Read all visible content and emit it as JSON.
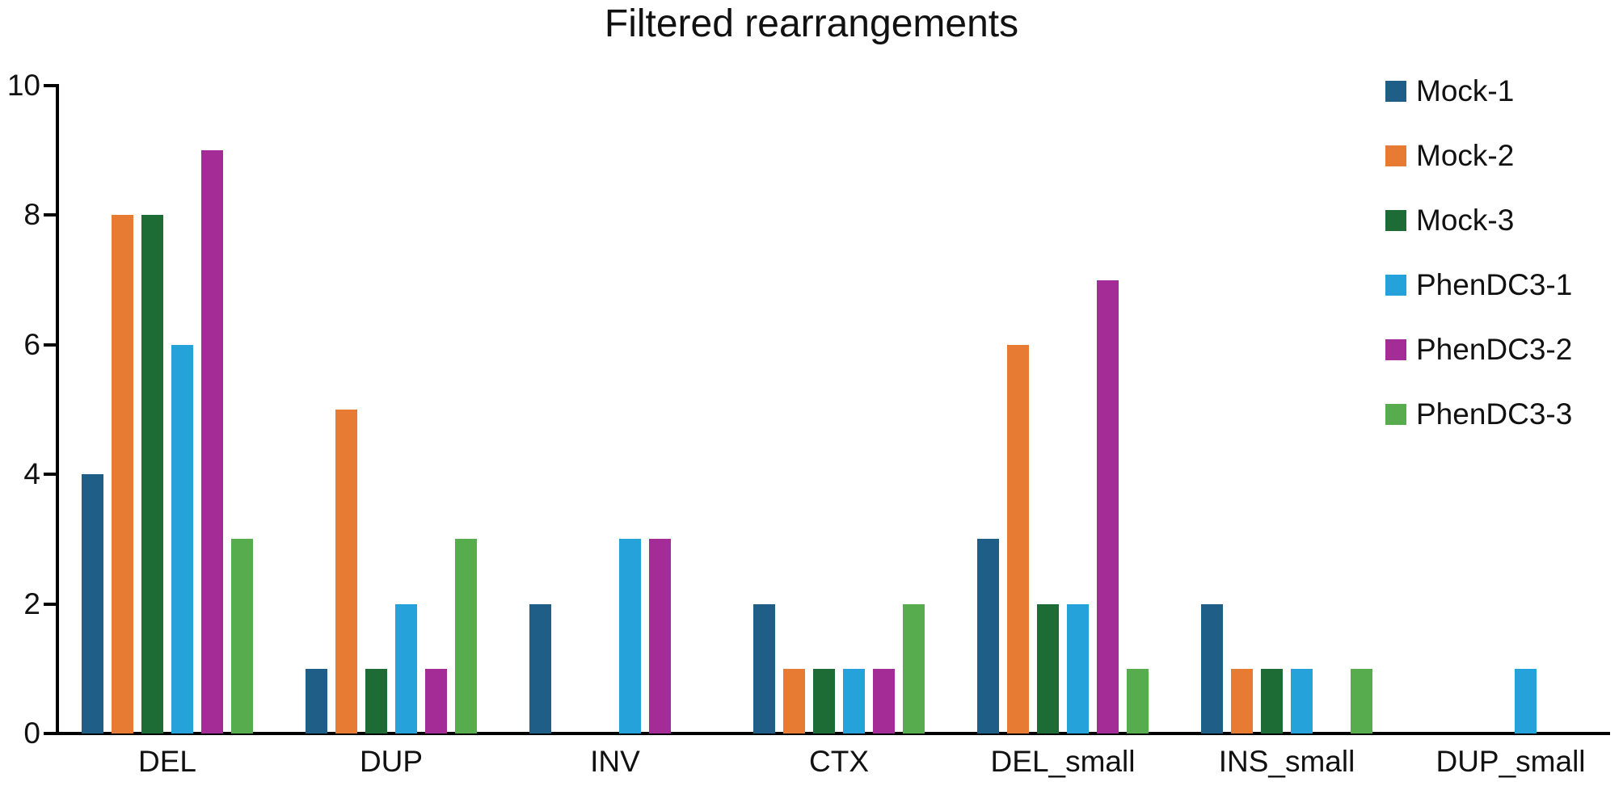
{
  "title": "Filtered rearrangements",
  "chart_data": {
    "type": "bar",
    "title": "Filtered rearrangements",
    "categories": [
      "DEL",
      "DUP",
      "INV",
      "CTX",
      "DEL_small",
      "INS_small",
      "DUP_small"
    ],
    "series": [
      {
        "name": "Mock-1",
        "color": "#1F5E87",
        "values": [
          4,
          1,
          2,
          2,
          3,
          2,
          0
        ]
      },
      {
        "name": "Mock-2",
        "color": "#E87B33",
        "values": [
          8,
          5,
          0,
          1,
          6,
          1,
          0
        ]
      },
      {
        "name": "Mock-3",
        "color": "#1D6B35",
        "values": [
          8,
          1,
          0,
          1,
          2,
          1,
          0
        ]
      },
      {
        "name": "PhenDC3-1",
        "color": "#26A2DB",
        "values": [
          6,
          2,
          3,
          1,
          2,
          1,
          1
        ]
      },
      {
        "name": "PhenDC3-2",
        "color": "#A32C96",
        "values": [
          9,
          1,
          3,
          1,
          7,
          0,
          0
        ]
      },
      {
        "name": "PhenDC3-3",
        "color": "#57AD4E",
        "values": [
          3,
          3,
          0,
          2,
          1,
          1,
          0
        ]
      }
    ],
    "xlabel": "",
    "ylabel": "",
    "ylim": [
      0,
      10
    ],
    "yticks": [
      0,
      2,
      4,
      6,
      8,
      10
    ],
    "grid": false,
    "legend_position": "upper-right",
    "axis_color": "#000000",
    "text_color": "#111111"
  }
}
